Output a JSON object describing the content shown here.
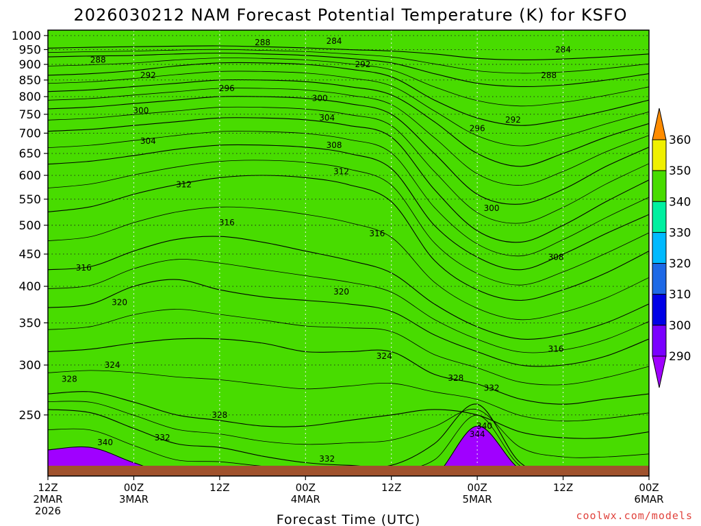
{
  "chart_data": {
    "type": "heatmap",
    "title": "2026030212 NAM Forecast Potential Temperature (K) for KSFO",
    "xlabel": "Forecast Time (UTC)",
    "credit": "coolwx.com/models",
    "y_axis": {
      "ticks": [
        1000,
        950,
        900,
        850,
        800,
        750,
        700,
        650,
        600,
        550,
        500,
        450,
        400,
        350,
        300,
        250
      ],
      "range": [
        1020,
        200
      ],
      "scale": "log-pressure"
    },
    "x_axis": {
      "range_hours": [
        0,
        84
      ],
      "ticks": [
        {
          "hour": 0,
          "line1": "12Z",
          "line2": "2MAR",
          "line3": "2026"
        },
        {
          "hour": 12,
          "line1": "00Z",
          "line2": "3MAR",
          "line3": ""
        },
        {
          "hour": 24,
          "line1": "12Z",
          "line2": "",
          "line3": ""
        },
        {
          "hour": 36,
          "line1": "00Z",
          "line2": "4MAR",
          "line3": ""
        },
        {
          "hour": 48,
          "line1": "12Z",
          "line2": "",
          "line3": ""
        },
        {
          "hour": 60,
          "line1": "00Z",
          "line2": "5MAR",
          "line3": ""
        },
        {
          "hour": 72,
          "line1": "12Z",
          "line2": "",
          "line3": ""
        },
        {
          "hour": 84,
          "line1": "00Z",
          "line2": "6MAR",
          "line3": ""
        }
      ]
    },
    "colorbar": {
      "levels": [
        290,
        300,
        310,
        320,
        330,
        340,
        350,
        360
      ],
      "colors": [
        "#7a00ff",
        "#0000e6",
        "#1e69e6",
        "#00baff",
        "#00f0a0",
        "#48dc00",
        "#f0f000",
        "#f0a000"
      ],
      "below_color": "#a000ff",
      "above_color": "#ff8c00"
    },
    "ground_color": "#a0522d",
    "contour_interval_K": 2,
    "isentrope_heights": [
      {
        "theta": 284,
        "pressure": [
          955,
          958,
          960,
          962,
          963,
          960,
          956,
          950,
          945,
          935,
          920,
          915,
          918,
          925,
          935
        ]
      },
      {
        "theta": 288,
        "pressure": [
          925,
          928,
          930,
          935,
          938,
          935,
          930,
          920,
          905,
          870,
          840,
          830,
          835,
          850,
          870
        ]
      },
      {
        "theta": 292,
        "pressure": [
          865,
          870,
          880,
          895,
          905,
          905,
          900,
          885,
          860,
          790,
          740,
          720,
          735,
          760,
          790
        ]
      },
      {
        "theta": 296,
        "pressure": [
          815,
          820,
          830,
          840,
          850,
          850,
          845,
          830,
          805,
          730,
          650,
          620,
          650,
          690,
          725
        ]
      },
      {
        "theta": 300,
        "pressure": [
          765,
          770,
          780,
          790,
          800,
          800,
          795,
          780,
          750,
          650,
          560,
          540,
          570,
          620,
          665
        ]
      },
      {
        "theta": 304,
        "pressure": [
          705,
          710,
          720,
          730,
          740,
          740,
          735,
          720,
          690,
          570,
          490,
          470,
          500,
          545,
          590
        ]
      },
      {
        "theta": 308,
        "pressure": [
          625,
          632,
          645,
          660,
          670,
          670,
          665,
          650,
          615,
          500,
          445,
          425,
          450,
          485,
          520
        ]
      },
      {
        "theta": 312,
        "pressure": [
          525,
          535,
          560,
          580,
          595,
          600,
          595,
          580,
          545,
          440,
          395,
          380,
          395,
          420,
          455
        ]
      },
      {
        "theta": 316,
        "pressure": [
          425,
          430,
          455,
          475,
          480,
          470,
          455,
          440,
          420,
          375,
          345,
          330,
          335,
          350,
          375
        ]
      },
      {
        "theta": 320,
        "pressure": [
          370,
          375,
          400,
          410,
          395,
          385,
          380,
          375,
          365,
          335,
          315,
          300,
          300,
          310,
          330
        ]
      },
      {
        "theta": 324,
        "pressure": [
          315,
          318,
          325,
          330,
          330,
          325,
          315,
          315,
          315,
          290,
          280,
          265,
          260,
          265,
          270
        ]
      },
      {
        "theta": 328,
        "pressure": [
          270,
          272,
          262,
          250,
          245,
          240,
          240,
          245,
          250,
          255,
          250,
          235,
          230,
          230,
          235
        ]
      },
      {
        "theta": 332,
        "pressure": [
          255,
          252,
          238,
          225,
          222,
          215,
          210,
          208,
          208,
          225,
          260,
          210,
          200,
          200,
          200
        ]
      },
      {
        "theta": 340,
        "pressure": [
          220,
          222,
          210,
          200,
          200,
          200,
          200,
          200,
          200,
          200,
          240,
          205,
          200,
          200,
          200
        ]
      }
    ],
    "isentrope_hours": [
      0,
      6,
      12,
      18,
      24,
      30,
      36,
      42,
      48,
      54,
      60,
      66,
      72,
      78,
      84
    ],
    "contour_labels": [
      {
        "text": "340",
        "hour": 8,
        "pressure": 226
      },
      {
        "text": "332",
        "hour": 16,
        "pressure": 230
      },
      {
        "text": "332",
        "hour": 39,
        "pressure": 213
      },
      {
        "text": "344",
        "hour": 60,
        "pressure": 233
      },
      {
        "text": "340",
        "hour": 61,
        "pressure": 240
      },
      {
        "text": "328",
        "hour": 24,
        "pressure": 250
      },
      {
        "text": "332",
        "hour": 62,
        "pressure": 276
      },
      {
        "text": "328",
        "hour": 3,
        "pressure": 285
      },
      {
        "text": "328",
        "hour": 57,
        "pressure": 286
      },
      {
        "text": "324",
        "hour": 9,
        "pressure": 300
      },
      {
        "text": "324",
        "hour": 47,
        "pressure": 310
      },
      {
        "text": "316",
        "hour": 71,
        "pressure": 318
      },
      {
        "text": "320",
        "hour": 10,
        "pressure": 377
      },
      {
        "text": "320",
        "hour": 41,
        "pressure": 392
      },
      {
        "text": "316",
        "hour": 5,
        "pressure": 428
      },
      {
        "text": "308",
        "hour": 71,
        "pressure": 445
      },
      {
        "text": "316",
        "hour": 46,
        "pressure": 485
      },
      {
        "text": "316",
        "hour": 25,
        "pressure": 505
      },
      {
        "text": "300",
        "hour": 62,
        "pressure": 532
      },
      {
        "text": "312",
        "hour": 19,
        "pressure": 580
      },
      {
        "text": "312",
        "hour": 41,
        "pressure": 608
      },
      {
        "text": "308",
        "hour": 40,
        "pressure": 670
      },
      {
        "text": "304",
        "hour": 14,
        "pressure": 680
      },
      {
        "text": "296",
        "hour": 60,
        "pressure": 712
      },
      {
        "text": "304",
        "hour": 39,
        "pressure": 740
      },
      {
        "text": "292",
        "hour": 65,
        "pressure": 735
      },
      {
        "text": "300",
        "hour": 13,
        "pressure": 760
      },
      {
        "text": "300",
        "hour": 38,
        "pressure": 795
      },
      {
        "text": "296",
        "hour": 25,
        "pressure": 825
      },
      {
        "text": "292",
        "hour": 14,
        "pressure": 865
      },
      {
        "text": "288",
        "hour": 70,
        "pressure": 865
      },
      {
        "text": "292",
        "hour": 44,
        "pressure": 900
      },
      {
        "text": "288",
        "hour": 7,
        "pressure": 915
      },
      {
        "text": "284",
        "hour": 72,
        "pressure": 950
      },
      {
        "text": "288",
        "hour": 30,
        "pressure": 975
      },
      {
        "text": "284",
        "hour": 40,
        "pressure": 980
      }
    ]
  }
}
